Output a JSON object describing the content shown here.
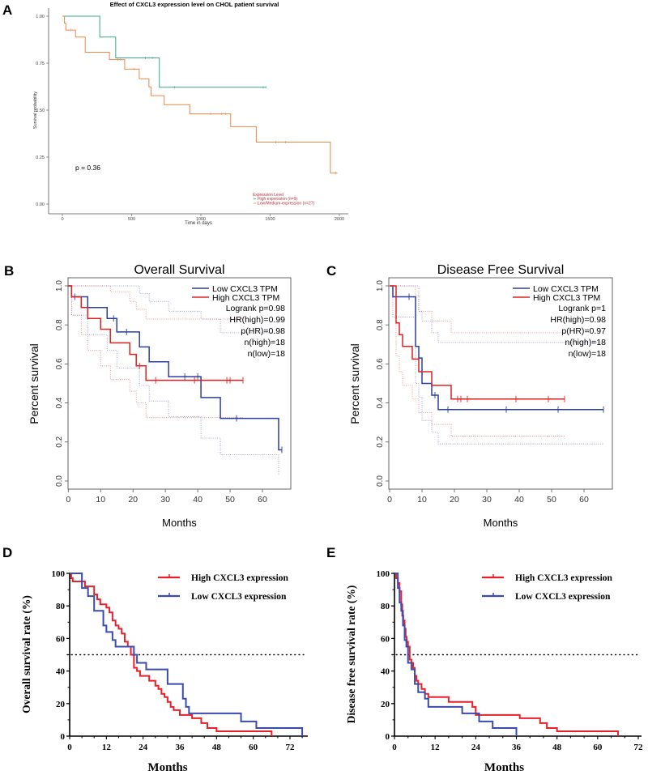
{
  "panel_labels": [
    "A",
    "B",
    "C",
    "D",
    "E"
  ],
  "chart_data": [
    {
      "type": "line",
      "step": true,
      "title": "Effect of CXCL3 expression level on CHOL patient survival",
      "xlabel": "Time in days",
      "ylabel": "Survival probability",
      "xlim": [
        0,
        2000
      ],
      "ylim": [
        0,
        1
      ],
      "xticks": [
        0,
        500,
        1000,
        1500,
        2000
      ],
      "yticks": [
        "0.00",
        "0.25",
        "0.50",
        "0.75",
        "1.00"
      ],
      "annotation": "p = 0.36",
      "legend_title": "Expression Level",
      "legend_placement": "bottom-right",
      "series": [
        {
          "name": "High expression (n=9)",
          "color": "#3aa889",
          "steps": [
            [
              0,
              1
            ],
            [
              270,
              0.889
            ],
            [
              385,
              0.778
            ],
            [
              700,
              0.622
            ],
            [
              1470,
              0.622
            ]
          ],
          "censored": [
            600,
            650,
            810,
            1450,
            1470
          ]
        },
        {
          "name": "Low/Medium-expression (n=27)",
          "color": "#e8894a",
          "steps": [
            [
              0,
              1
            ],
            [
              15,
              0.963
            ],
            [
              25,
              0.926
            ],
            [
              95,
              0.889
            ],
            [
              165,
              0.808
            ],
            [
              340,
              0.769
            ],
            [
              450,
              0.718
            ],
            [
              555,
              0.667
            ],
            [
              625,
              0.624
            ],
            [
              640,
              0.577
            ],
            [
              735,
              0.529
            ],
            [
              920,
              0.48
            ],
            [
              1215,
              0.412
            ],
            [
              1400,
              0.33
            ],
            [
              1935,
              0.165
            ],
            [
              1985,
              0.165
            ]
          ],
          "censored": [
            60,
            400,
            420,
            520,
            1070,
            1150,
            1180,
            1540,
            1610,
            1975
          ]
        }
      ]
    },
    {
      "type": "line",
      "step": true,
      "title": "Overall Survival",
      "xlabel": "Months",
      "ylabel": "Percent survival",
      "xlim": [
        0,
        60
      ],
      "ylim": [
        0,
        1
      ],
      "xticks": [
        0,
        10,
        20,
        30,
        40,
        50,
        60
      ],
      "yticks": [
        "0.0",
        "0.2",
        "0.4",
        "0.6",
        "0.8",
        "1.0"
      ],
      "legend_placement": "top-right",
      "stats": [
        "Logrank p=0.98",
        "HR(high)=0.99",
        "p(HR)=0.98",
        "n(high)=18",
        "n(low)=18"
      ],
      "series": [
        {
          "name": "Low CXCL3 TPM",
          "color": "#2b3fa0",
          "steps": [
            [
              0,
              1
            ],
            [
              1,
              0.944
            ],
            [
              6,
              0.889
            ],
            [
              12,
              0.833
            ],
            [
              15,
              0.764
            ],
            [
              22,
              0.687
            ],
            [
              25,
              0.611
            ],
            [
              31,
              0.535
            ],
            [
              41,
              0.428
            ],
            [
              47,
              0.321
            ],
            [
              65,
              0.16
            ],
            [
              66,
              0.16
            ]
          ],
          "censored": [
            2,
            14,
            18,
            36,
            40,
            52,
            66
          ],
          "ci_upper": [
            [
              0,
              1
            ],
            [
              22,
              0.96
            ],
            [
              25,
              0.92
            ],
            [
              31,
              0.87
            ],
            [
              41,
              0.83
            ],
            [
              47,
              0.76
            ],
            [
              65,
              0.76
            ]
          ],
          "ci_lower": [
            [
              0,
              1
            ],
            [
              1,
              0.85
            ],
            [
              6,
              0.75
            ],
            [
              12,
              0.67
            ],
            [
              15,
              0.58
            ],
            [
              22,
              0.49
            ],
            [
              25,
              0.41
            ],
            [
              31,
              0.33
            ],
            [
              41,
              0.22
            ],
            [
              47,
              0.135
            ],
            [
              65,
              0.03
            ]
          ]
        },
        {
          "name": "High CXCL3 TPM",
          "color": "#e02020",
          "steps": [
            [
              0,
              1
            ],
            [
              1,
              0.944
            ],
            [
              4,
              0.889
            ],
            [
              6,
              0.833
            ],
            [
              10,
              0.778
            ],
            [
              13,
              0.708
            ],
            [
              19,
              0.649
            ],
            [
              21,
              0.59
            ],
            [
              24,
              0.516
            ],
            [
              54,
              0.516
            ]
          ],
          "censored": [
            22,
            27,
            39,
            49,
            50,
            54
          ],
          "ci_upper": [
            [
              0,
              1
            ],
            [
              13,
              0.97
            ],
            [
              19,
              0.92
            ],
            [
              21,
              0.88
            ],
            [
              24,
              0.83
            ],
            [
              54,
              0.83
            ]
          ],
          "ci_lower": [
            [
              0,
              1
            ],
            [
              1,
              0.85
            ],
            [
              4,
              0.75
            ],
            [
              6,
              0.67
            ],
            [
              10,
              0.59
            ],
            [
              13,
              0.52
            ],
            [
              19,
              0.46
            ],
            [
              21,
              0.4
            ],
            [
              24,
              0.325
            ],
            [
              54,
              0.325
            ]
          ]
        }
      ]
    },
    {
      "type": "line",
      "step": true,
      "title": "Disease Free Survival",
      "xlabel": "Months",
      "ylabel": "Percent survival",
      "xlim": [
        0,
        60
      ],
      "ylim": [
        0,
        1
      ],
      "xticks": [
        0,
        10,
        20,
        30,
        40,
        50,
        60
      ],
      "yticks": [
        "0.0",
        "0.2",
        "0.4",
        "0.6",
        "0.8",
        "1.0"
      ],
      "legend_placement": "top-right",
      "stats": [
        "Logrank p=1",
        "HR(high)=0.98",
        "p(HR)=0.97",
        "n(high)=18",
        "n(low)=18"
      ],
      "series": [
        {
          "name": "Low CXCL3 TPM",
          "color": "#2b3fa0",
          "steps": [
            [
              0,
              1
            ],
            [
              1,
              0.944
            ],
            [
              8,
              0.69
            ],
            [
              9,
              0.63
            ],
            [
              10,
              0.5
            ],
            [
              13,
              0.44
            ],
            [
              15,
              0.366
            ],
            [
              66,
              0.366
            ]
          ],
          "censored": [
            6,
            14,
            18,
            36,
            52,
            66
          ],
          "ci_upper": [
            [
              0,
              1
            ],
            [
              9,
              0.87
            ],
            [
              10,
              0.82
            ],
            [
              13,
              0.76
            ],
            [
              15,
              0.71
            ],
            [
              66,
              0.71
            ]
          ],
          "ci_lower": [
            [
              0,
              1
            ],
            [
              1,
              0.84
            ],
            [
              8,
              0.5
            ],
            [
              9,
              0.43
            ],
            [
              10,
              0.31
            ],
            [
              13,
              0.25
            ],
            [
              15,
              0.19
            ],
            [
              66,
              0.19
            ]
          ]
        },
        {
          "name": "High CXCL3 TPM",
          "color": "#e02020",
          "steps": [
            [
              0,
              1
            ],
            [
              2,
              0.81
            ],
            [
              3,
              0.75
            ],
            [
              4,
              0.69
            ],
            [
              7,
              0.625
            ],
            [
              9,
              0.56
            ],
            [
              13,
              0.49
            ],
            [
              19,
              0.42
            ],
            [
              54,
              0.42
            ]
          ],
          "censored": [
            21,
            22,
            24,
            39,
            49,
            54
          ],
          "ci_upper": [
            [
              0,
              1
            ],
            [
              8,
              0.95
            ],
            [
              9,
              0.87
            ],
            [
              13,
              0.82
            ],
            [
              19,
              0.76
            ],
            [
              54,
              0.76
            ]
          ],
          "ci_lower": [
            [
              0,
              1
            ],
            [
              2,
              0.64
            ],
            [
              3,
              0.56
            ],
            [
              4,
              0.49
            ],
            [
              7,
              0.42
            ],
            [
              9,
              0.35
            ],
            [
              13,
              0.29
            ],
            [
              19,
              0.23
            ],
            [
              54,
              0.23
            ]
          ]
        }
      ]
    },
    {
      "type": "line",
      "step": true,
      "xlabel": "Months",
      "ylabel": "Overall survival rate (%)",
      "xlim": [
        0,
        76
      ],
      "ylim": [
        0,
        100
      ],
      "xticks": [
        0,
        12,
        24,
        36,
        48,
        60,
        72
      ],
      "yticks": [
        "0",
        "20",
        "40",
        "60",
        "80",
        "100"
      ],
      "reference_line": 50,
      "legend_placement": "top-right",
      "series": [
        {
          "name": "High CXCL3 expression",
          "color": "#e8202a",
          "steps": [
            [
              0,
              100
            ],
            [
              0.5,
              97
            ],
            [
              1,
              95
            ],
            [
              5,
              92
            ],
            [
              8,
              87
            ],
            [
              9,
              84
            ],
            [
              10,
              81
            ],
            [
              12,
              79
            ],
            [
              13,
              76
            ],
            [
              14,
              71
            ],
            [
              15,
              68
            ],
            [
              16,
              66
            ],
            [
              17,
              63
            ],
            [
              18,
              58
            ],
            [
              19,
              55
            ],
            [
              20,
              50
            ],
            [
              21,
              42
            ],
            [
              22,
              40
            ],
            [
              23,
              37
            ],
            [
              26,
              34
            ],
            [
              28,
              31
            ],
            [
              29,
              29
            ],
            [
              30,
              26
            ],
            [
              31,
              24
            ],
            [
              32,
              21
            ],
            [
              33,
              18
            ],
            [
              34,
              16
            ],
            [
              36,
              13
            ],
            [
              40,
              11
            ],
            [
              43,
              8
            ],
            [
              45,
              5
            ],
            [
              48,
              3
            ],
            [
              66,
              0
            ]
          ]
        },
        {
          "name": "Low CXCL3 expression",
          "color": "#3a4bb0",
          "steps": [
            [
              0,
              100
            ],
            [
              4,
              91
            ],
            [
              6,
              86
            ],
            [
              8,
              77
            ],
            [
              11,
              68
            ],
            [
              12,
              64
            ],
            [
              14,
              59
            ],
            [
              15,
              55
            ],
            [
              21,
              50
            ],
            [
              22,
              45
            ],
            [
              25,
              41
            ],
            [
              32,
              32
            ],
            [
              37,
              23
            ],
            [
              38,
              18
            ],
            [
              39,
              14
            ],
            [
              56,
              9
            ],
            [
              61,
              5
            ],
            [
              76,
              0
            ]
          ]
        }
      ]
    },
    {
      "type": "line",
      "step": true,
      "xlabel": "Months",
      "ylabel": "Disease free survival rate (%)",
      "xlim": [
        0,
        72
      ],
      "ylim": [
        0,
        100
      ],
      "xticks": [
        0,
        12,
        24,
        36,
        48,
        60,
        72
      ],
      "yticks": [
        "0",
        "20",
        "40",
        "60",
        "80",
        "100"
      ],
      "reference_line": 50,
      "legend_placement": "top-right",
      "series": [
        {
          "name": "High CXCL3 expression",
          "color": "#e8202a",
          "steps": [
            [
              0,
              100
            ],
            [
              0.5,
              97
            ],
            [
              1,
              94
            ],
            [
              1.5,
              89
            ],
            [
              2,
              81
            ],
            [
              2.3,
              74
            ],
            [
              2.6,
              71
            ],
            [
              3,
              66
            ],
            [
              3.3,
              61
            ],
            [
              3.6,
              58
            ],
            [
              4,
              55
            ],
            [
              4.5,
              47
            ],
            [
              5,
              45
            ],
            [
              5.5,
              42
            ],
            [
              6,
              37
            ],
            [
              6.5,
              34
            ],
            [
              7,
              32
            ],
            [
              8,
              29
            ],
            [
              9,
              26
            ],
            [
              10,
              24
            ],
            [
              16,
              21
            ],
            [
              23,
              18
            ],
            [
              24,
              13
            ],
            [
              37,
              11
            ],
            [
              43,
              8
            ],
            [
              45,
              5
            ],
            [
              48,
              3
            ],
            [
              66,
              0
            ]
          ]
        },
        {
          "name": "Low CXCL3 expression",
          "color": "#3a4bb0",
          "steps": [
            [
              0,
              100
            ],
            [
              1,
              91
            ],
            [
              1.5,
              82
            ],
            [
              2,
              77
            ],
            [
              2.5,
              68
            ],
            [
              3,
              59
            ],
            [
              3.5,
              55
            ],
            [
              4,
              45
            ],
            [
              5,
              41
            ],
            [
              6,
              32
            ],
            [
              7,
              27
            ],
            [
              9,
              23
            ],
            [
              10,
              18
            ],
            [
              20,
              14
            ],
            [
              25,
              9
            ],
            [
              29,
              5
            ],
            [
              36,
              0
            ]
          ]
        }
      ]
    }
  ]
}
